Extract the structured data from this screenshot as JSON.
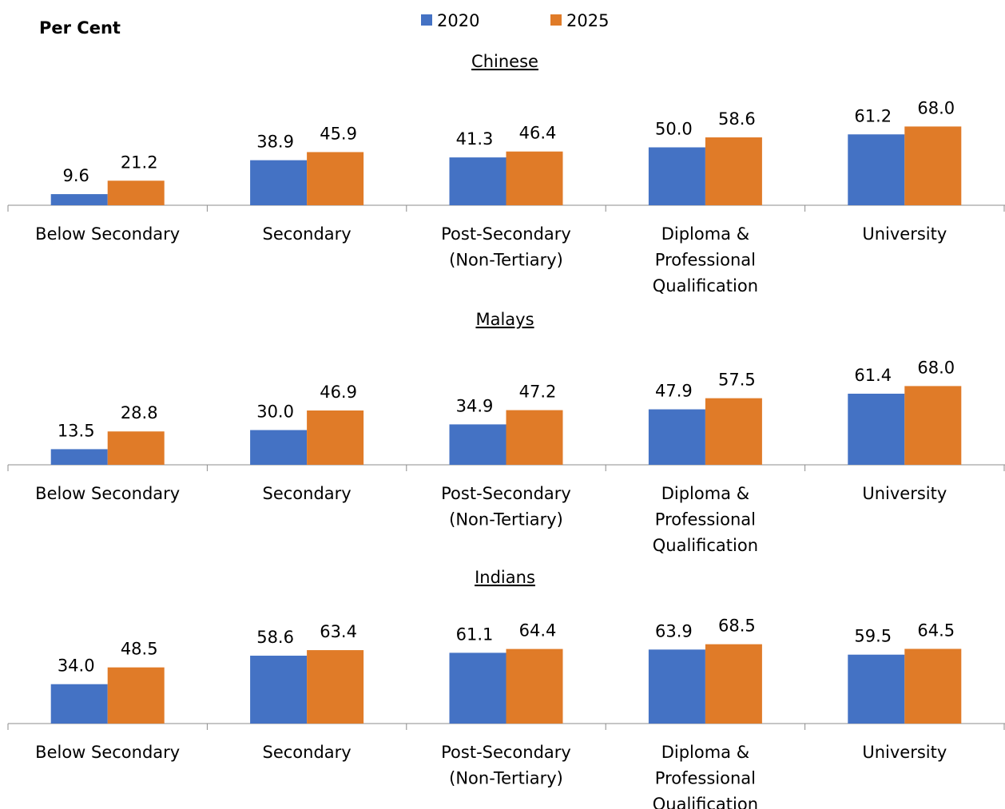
{
  "unit_label": "Per Cent",
  "colors": {
    "2020": "#4472C4",
    "2025": "#E07B28"
  },
  "legend": [
    {
      "label": "2020",
      "color": "#4472C4"
    },
    {
      "label": "2025",
      "color": "#E07B28"
    }
  ],
  "chart_data": [
    {
      "type": "bar",
      "title": "Chinese",
      "categories": [
        "Below Secondary",
        "Secondary",
        "Post-Secondary (Non-Tertiary)",
        "Diploma & Professional Qualification",
        "University"
      ],
      "series": [
        {
          "name": "2020",
          "values": [
            9.6,
            38.9,
            41.3,
            50.0,
            61.2
          ]
        },
        {
          "name": "2025",
          "values": [
            21.2,
            45.9,
            46.4,
            58.6,
            68.0
          ]
        }
      ],
      "ylim": [
        0,
        100
      ],
      "grid": false,
      "legend_position": "top-center"
    },
    {
      "type": "bar",
      "title": "Malays",
      "categories": [
        "Below Secondary",
        "Secondary",
        "Post-Secondary (Non-Tertiary)",
        "Diploma & Professional Qualification",
        "University"
      ],
      "series": [
        {
          "name": "2020",
          "values": [
            13.5,
            30.0,
            34.9,
            47.9,
            61.4
          ]
        },
        {
          "name": "2025",
          "values": [
            28.8,
            46.9,
            47.2,
            57.5,
            68.0
          ]
        }
      ],
      "ylim": [
        0,
        100
      ],
      "grid": false,
      "legend_position": "top-center"
    },
    {
      "type": "bar",
      "title": "Indians",
      "categories": [
        "Below Secondary",
        "Secondary",
        "Post-Secondary (Non-Tertiary)",
        "Diploma & Professional Qualification",
        "University"
      ],
      "series": [
        {
          "name": "2020",
          "values": [
            34.0,
            58.6,
            61.1,
            63.9,
            59.5
          ]
        },
        {
          "name": "2025",
          "values": [
            48.5,
            63.4,
            64.4,
            68.5,
            64.5
          ]
        }
      ],
      "ylim": [
        0,
        100
      ],
      "grid": false,
      "legend_position": "top-center"
    }
  ]
}
